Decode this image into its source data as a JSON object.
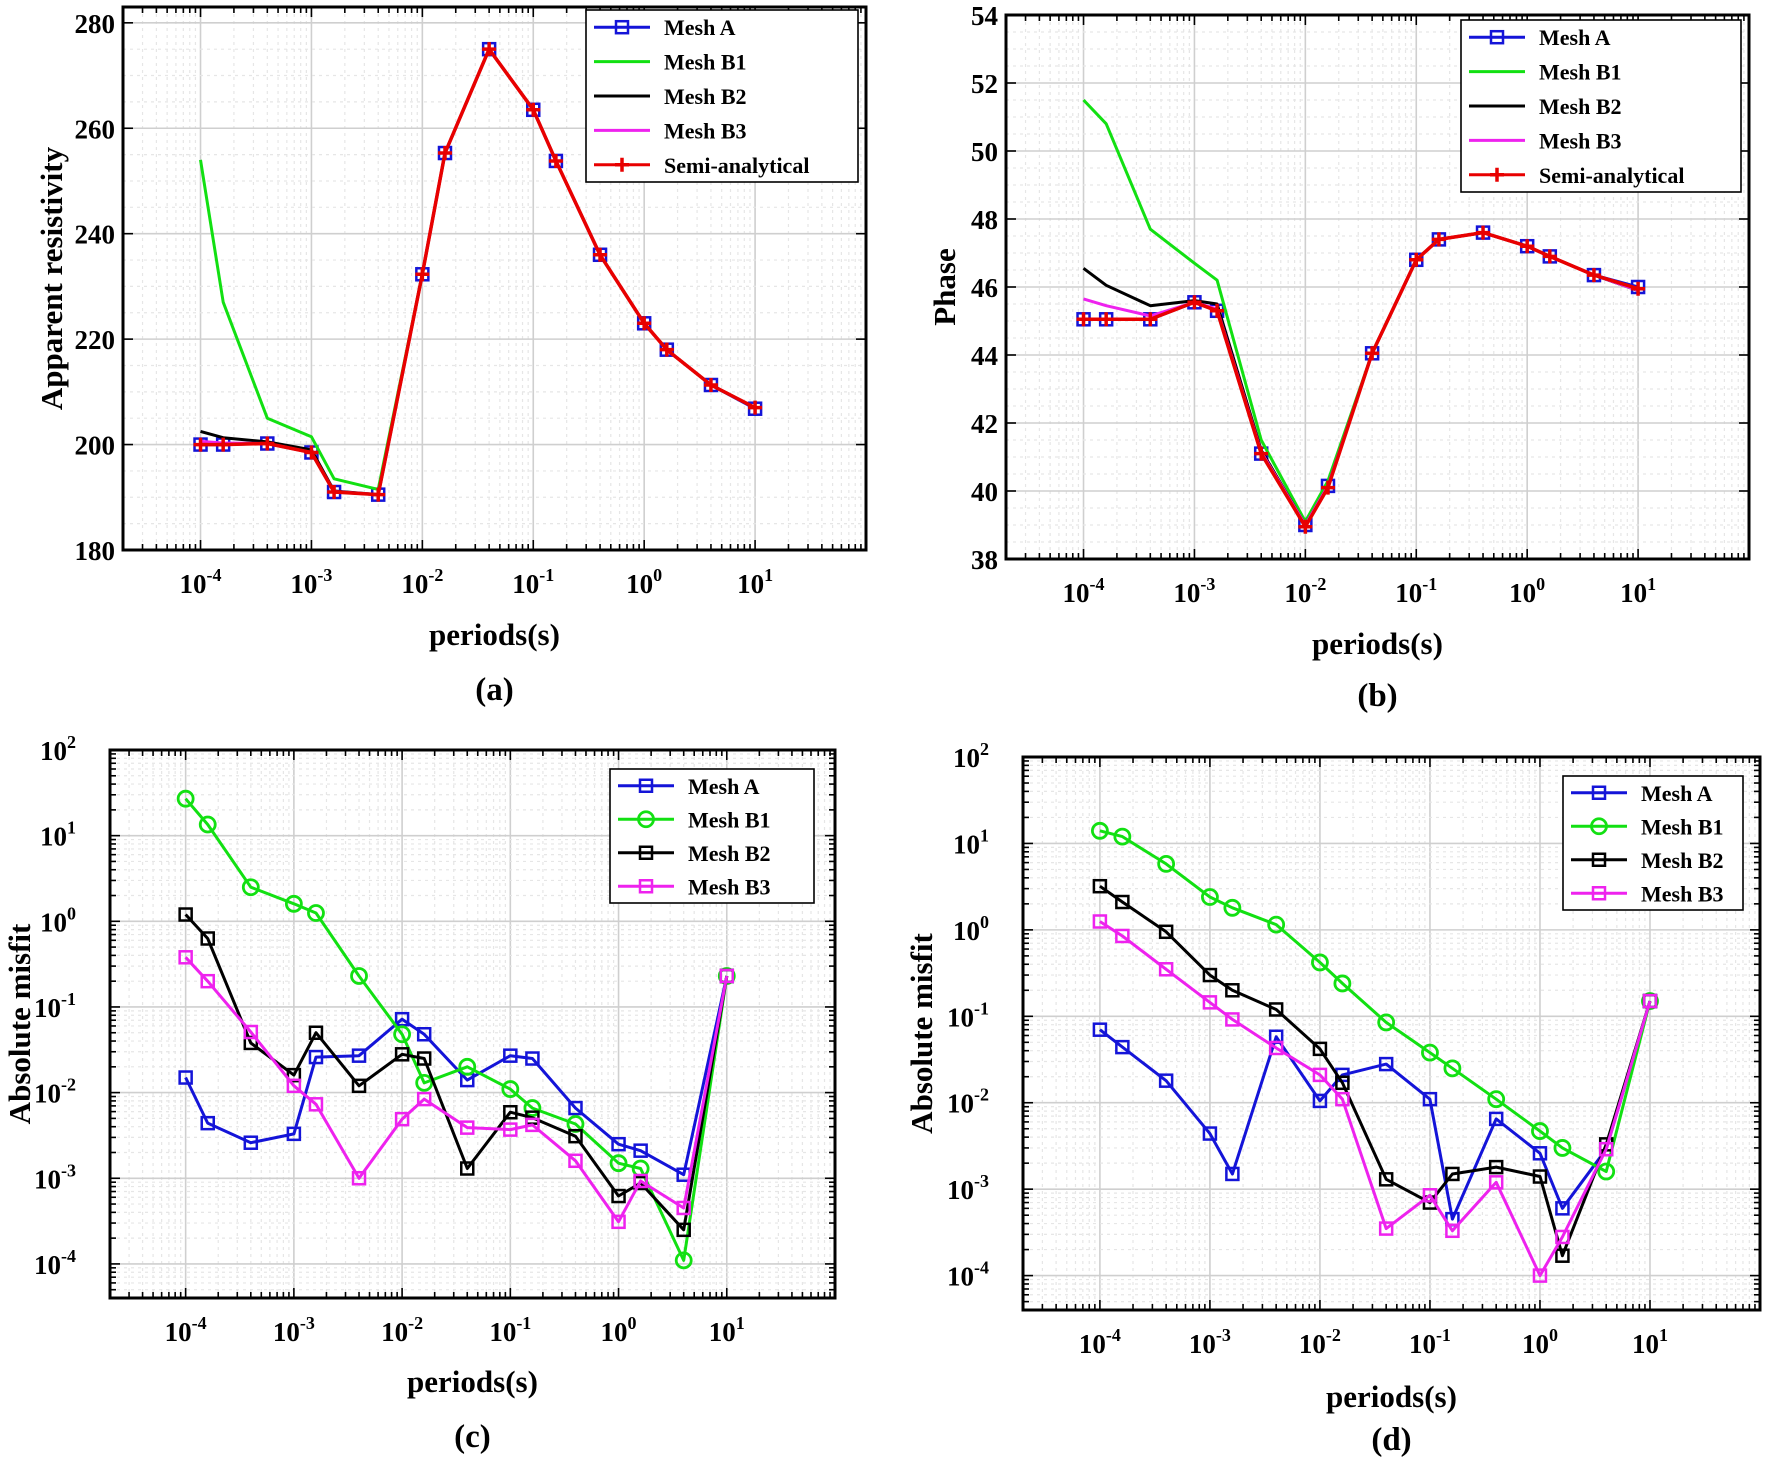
{
  "figure": {
    "panels": [
      {
        "id": "a",
        "label": "(a)"
      },
      {
        "id": "b",
        "label": "(b)"
      },
      {
        "id": "c",
        "label": "(c)"
      },
      {
        "id": "d",
        "label": "(d)"
      }
    ]
  },
  "colors": {
    "mesh_a": "#1414d8",
    "mesh_b1": "#12e012",
    "mesh_b2": "#000000",
    "mesh_b3": "#ee22ee",
    "semi_analytical": "#e80000",
    "grid_major": "#cfcfcf",
    "grid_minor": "#e6e6e6"
  },
  "chart_data": [
    {
      "id": "a",
      "type": "line",
      "xlabel": "periods(s)",
      "ylabel": "Apparent resistivity",
      "xscale": "log",
      "xlim": [
        2e-05,
        100
      ],
      "ylim": [
        180,
        283
      ],
      "yticks": [
        180,
        200,
        220,
        240,
        260,
        280
      ],
      "xticks": [
        {
          "base": "10",
          "exp": "-4",
          "value": 0.0001
        },
        {
          "base": "10",
          "exp": "-3",
          "value": 0.001
        },
        {
          "base": "10",
          "exp": "-2",
          "value": 0.01
        },
        {
          "base": "10",
          "exp": "-1",
          "value": 0.1
        },
        {
          "base": "10",
          "exp": "0",
          "value": 1
        },
        {
          "base": "10",
          "exp": "1",
          "value": 10
        }
      ],
      "grid": true,
      "legend_position": "top-right",
      "x": [
        0.0001,
        0.00016,
        0.0004,
        0.001,
        0.0016,
        0.004,
        0.01,
        0.016,
        0.04,
        0.1,
        0.16,
        0.4,
        1,
        1.6,
        4,
        10
      ],
      "series": [
        {
          "name": "Mesh A",
          "key": "mesh_a",
          "marker": "square",
          "values": [
            200,
            200,
            200.2,
            198.5,
            191,
            190.5,
            232.3,
            255.3,
            275,
            263.5,
            253.8,
            236,
            223,
            218,
            211.3,
            206.8
          ]
        },
        {
          "name": "Mesh B1",
          "key": "mesh_b1",
          "marker": "none",
          "values": [
            254,
            227,
            205,
            201.5,
            193.5,
            191.5,
            232.3,
            255.3,
            275,
            263.5,
            253.8,
            236,
            223,
            218,
            211.3,
            207
          ]
        },
        {
          "name": "Mesh B2",
          "key": "mesh_b2",
          "marker": "none",
          "values": [
            202.5,
            201.3,
            200.5,
            199,
            191.2,
            190.5,
            232.3,
            255.3,
            275,
            263.5,
            253.8,
            236,
            223,
            218,
            211.3,
            207
          ]
        },
        {
          "name": "Mesh B3",
          "key": "mesh_b3",
          "marker": "none",
          "values": [
            200.6,
            200.3,
            200.2,
            198.5,
            191.1,
            190.5,
            232.3,
            255.3,
            275,
            263.5,
            253.8,
            236,
            223,
            218,
            211.3,
            207
          ]
        },
        {
          "name": "Semi-analytical",
          "key": "semi_analytical",
          "marker": "plus",
          "values": [
            200,
            200,
            200.2,
            198.5,
            191,
            190.5,
            232.3,
            255.3,
            275,
            263.5,
            253.8,
            236,
            223,
            218,
            211.3,
            207
          ]
        }
      ]
    },
    {
      "id": "b",
      "type": "line",
      "xlabel": "periods(s)",
      "ylabel": "Phase",
      "xscale": "log",
      "xlim": [
        2e-05,
        100
      ],
      "ylim": [
        38,
        54
      ],
      "yticks": [
        38,
        40,
        42,
        44,
        46,
        48,
        50,
        52,
        54
      ],
      "xticks": [
        {
          "base": "10",
          "exp": "-4",
          "value": 0.0001
        },
        {
          "base": "10",
          "exp": "-3",
          "value": 0.001
        },
        {
          "base": "10",
          "exp": "-2",
          "value": 0.01
        },
        {
          "base": "10",
          "exp": "-1",
          "value": 0.1
        },
        {
          "base": "10",
          "exp": "0",
          "value": 1
        },
        {
          "base": "10",
          "exp": "1",
          "value": 10
        }
      ],
      "grid": true,
      "legend_position": "top-right",
      "x": [
        0.0001,
        0.00016,
        0.0004,
        0.001,
        0.0016,
        0.004,
        0.01,
        0.016,
        0.04,
        0.1,
        0.16,
        0.4,
        1,
        1.6,
        4,
        10
      ],
      "series": [
        {
          "name": "Mesh A",
          "key": "mesh_a",
          "marker": "square",
          "values": [
            45.05,
            45.05,
            45.05,
            45.55,
            45.3,
            41.1,
            39,
            40.15,
            44.05,
            46.8,
            47.4,
            47.6,
            47.2,
            46.9,
            46.35,
            46
          ]
        },
        {
          "name": "Mesh B1",
          "key": "mesh_b1",
          "marker": "none",
          "values": [
            51.5,
            50.8,
            47.7,
            46.7,
            46.2,
            41.5,
            39.1,
            40.3,
            44.05,
            46.8,
            47.4,
            47.6,
            47.2,
            46.9,
            46.35,
            45.9
          ]
        },
        {
          "name": "Mesh B2",
          "key": "mesh_b2",
          "marker": "none",
          "values": [
            46.55,
            46.05,
            45.45,
            45.6,
            45.5,
            41.2,
            39,
            40.15,
            44.05,
            46.8,
            47.4,
            47.6,
            47.2,
            46.9,
            46.35,
            45.9
          ]
        },
        {
          "name": "Mesh B3",
          "key": "mesh_b3",
          "marker": "none",
          "values": [
            45.65,
            45.45,
            45.15,
            45.55,
            45.35,
            41.15,
            39,
            40.15,
            44.05,
            46.8,
            47.4,
            47.6,
            47.2,
            46.9,
            46.35,
            45.9
          ]
        },
        {
          "name": "Semi-analytical",
          "key": "semi_analytical",
          "marker": "plus",
          "values": [
            45.05,
            45.05,
            45.05,
            45.55,
            45.3,
            41.1,
            38.95,
            40.1,
            44.05,
            46.8,
            47.4,
            47.6,
            47.2,
            46.9,
            46.35,
            45.95
          ]
        }
      ]
    },
    {
      "id": "c",
      "type": "line",
      "xlabel": "periods(s)",
      "ylabel": "Absolute misfit",
      "xscale": "log",
      "yscale": "log",
      "xlim": [
        2e-05,
        100
      ],
      "ylim": [
        4e-05,
        100
      ],
      "yticks": [
        {
          "base": "10",
          "exp": "-4",
          "value": 0.0001
        },
        {
          "base": "10",
          "exp": "-3",
          "value": 0.001
        },
        {
          "base": "10",
          "exp": "-2",
          "value": 0.01
        },
        {
          "base": "10",
          "exp": "-1",
          "value": 0.1
        },
        {
          "base": "10",
          "exp": "0",
          "value": 1
        },
        {
          "base": "10",
          "exp": "1",
          "value": 10
        },
        {
          "base": "10",
          "exp": "2",
          "value": 100
        }
      ],
      "xticks": [
        {
          "base": "10",
          "exp": "-4",
          "value": 0.0001
        },
        {
          "base": "10",
          "exp": "-3",
          "value": 0.001
        },
        {
          "base": "10",
          "exp": "-2",
          "value": 0.01
        },
        {
          "base": "10",
          "exp": "-1",
          "value": 0.1
        },
        {
          "base": "10",
          "exp": "0",
          "value": 1
        },
        {
          "base": "10",
          "exp": "1",
          "value": 10
        }
      ],
      "grid": true,
      "legend_position": "top-right",
      "x": [
        0.0001,
        0.00016,
        0.0004,
        0.001,
        0.0016,
        0.004,
        0.01,
        0.016,
        0.04,
        0.1,
        0.16,
        0.4,
        1,
        1.6,
        4,
        10
      ],
      "series": [
        {
          "name": "Mesh A",
          "key": "mesh_a",
          "marker": "square",
          "values": [
            0.015,
            0.0044,
            0.0026,
            0.0033,
            0.026,
            0.027,
            0.072,
            0.048,
            0.014,
            0.027,
            0.025,
            0.0066,
            0.0025,
            0.0021,
            0.0011,
            0.23
          ]
        },
        {
          "name": "Mesh B1",
          "key": "mesh_b1",
          "marker": "circle",
          "values": [
            27,
            13.5,
            2.5,
            1.6,
            1.25,
            0.23,
            0.048,
            0.013,
            0.02,
            0.011,
            0.0066,
            0.0043,
            0.0015,
            0.0013,
            0.00011,
            0.23
          ]
        },
        {
          "name": "Mesh B2",
          "key": "mesh_b2",
          "marker": "square",
          "values": [
            1.2,
            0.63,
            0.038,
            0.016,
            0.05,
            0.012,
            0.028,
            0.025,
            0.0013,
            0.0059,
            0.0051,
            0.0031,
            0.00062,
            0.00088,
            0.00025,
            0.23
          ]
        },
        {
          "name": "Mesh B3",
          "key": "mesh_b3",
          "marker": "square",
          "values": [
            0.38,
            0.2,
            0.051,
            0.012,
            0.0073,
            0.001,
            0.0049,
            0.0084,
            0.0039,
            0.0037,
            0.0042,
            0.0016,
            0.00031,
            0.00093,
            0.00045,
            0.23
          ]
        }
      ]
    },
    {
      "id": "d",
      "type": "line",
      "xlabel": "periods(s)",
      "ylabel": "Absolute misfit",
      "xscale": "log",
      "yscale": "log",
      "xlim": [
        2e-05,
        100
      ],
      "ylim": [
        4e-05,
        100
      ],
      "yticks": [
        {
          "base": "10",
          "exp": "-4",
          "value": 0.0001
        },
        {
          "base": "10",
          "exp": "-3",
          "value": 0.001
        },
        {
          "base": "10",
          "exp": "-2",
          "value": 0.01
        },
        {
          "base": "10",
          "exp": "-1",
          "value": 0.1
        },
        {
          "base": "10",
          "exp": "0",
          "value": 1
        },
        {
          "base": "10",
          "exp": "1",
          "value": 10
        },
        {
          "base": "10",
          "exp": "2",
          "value": 100
        }
      ],
      "xticks": [
        {
          "base": "10",
          "exp": "-4",
          "value": 0.0001
        },
        {
          "base": "10",
          "exp": "-3",
          "value": 0.001
        },
        {
          "base": "10",
          "exp": "-2",
          "value": 0.01
        },
        {
          "base": "10",
          "exp": "-1",
          "value": 0.1
        },
        {
          "base": "10",
          "exp": "0",
          "value": 1
        },
        {
          "base": "10",
          "exp": "1",
          "value": 10
        }
      ],
      "grid": true,
      "legend_position": "top-right",
      "x": [
        0.0001,
        0.00016,
        0.0004,
        0.001,
        0.0016,
        0.004,
        0.01,
        0.016,
        0.04,
        0.1,
        0.16,
        0.4,
        1,
        1.6,
        4,
        10
      ],
      "series": [
        {
          "name": "Mesh A",
          "key": "mesh_a",
          "marker": "square",
          "values": [
            0.07,
            0.044,
            0.018,
            0.0044,
            0.0015,
            0.058,
            0.0105,
            0.021,
            0.028,
            0.011,
            0.00045,
            0.0065,
            0.0026,
            0.0006,
            0.0029,
            0.15
          ]
        },
        {
          "name": "Mesh B1",
          "key": "mesh_b1",
          "marker": "circle",
          "values": [
            14,
            12,
            5.8,
            2.4,
            1.8,
            1.15,
            0.42,
            0.24,
            0.085,
            0.038,
            0.025,
            0.011,
            0.0047,
            0.003,
            0.0016,
            0.15
          ]
        },
        {
          "name": "Mesh B2",
          "key": "mesh_b2",
          "marker": "square",
          "values": [
            3.2,
            2.1,
            0.95,
            0.3,
            0.2,
            0.12,
            0.042,
            0.017,
            0.0013,
            0.0007,
            0.0015,
            0.0018,
            0.0014,
            0.00017,
            0.0033,
            0.15
          ]
        },
        {
          "name": "Mesh B3",
          "key": "mesh_b3",
          "marker": "square",
          "values": [
            1.25,
            0.85,
            0.35,
            0.145,
            0.092,
            0.043,
            0.021,
            0.011,
            0.00035,
            0.00085,
            0.00033,
            0.0012,
            0.0001,
            0.00028,
            0.0029,
            0.15
          ]
        }
      ]
    }
  ]
}
